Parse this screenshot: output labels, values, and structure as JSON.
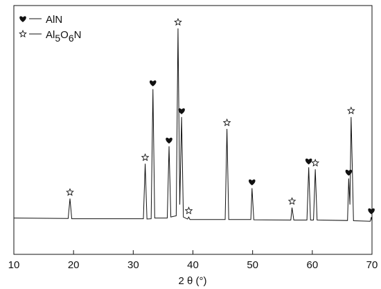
{
  "chart_data": {
    "type": "line",
    "x_label": "2 θ (°)",
    "xlim": [
      10,
      70
    ],
    "xticks": [
      10,
      20,
      30,
      40,
      50,
      60,
      70
    ],
    "ylim": [
      0,
      100
    ],
    "color": "#111111",
    "x": [
      10,
      19.1,
      19.4,
      19.7,
      31.7,
      32.0,
      32.3,
      33.0,
      33.3,
      33.6,
      35.7,
      36.0,
      36.3,
      37.2,
      37.5,
      37.8,
      38.1,
      38.4,
      39.1,
      39.3,
      39.5,
      45.4,
      45.7,
      46.0,
      49.7,
      49.9,
      50.2,
      56.4,
      56.6,
      56.9,
      59.1,
      59.4,
      59.7,
      60.2,
      60.5,
      60.8,
      65.9,
      66.1,
      66.3,
      66.5,
      66.7,
      66.9,
      69.7,
      69.9,
      70
    ],
    "values": [
      14.6,
      14.4,
      22.4,
      14.3,
      14.3,
      36.4,
      14.2,
      14.3,
      66.4,
      14.6,
      14.6,
      43.4,
      15,
      15.5,
      90.8,
      20,
      55.2,
      15,
      14.2,
      15,
      14,
      14,
      50.4,
      14,
      14,
      26.6,
      13.9,
      13.8,
      18.8,
      13.8,
      13.8,
      35,
      13.8,
      13.8,
      34.2,
      13.8,
      13.6,
      30.5,
      20,
      55.2,
      35,
      13.5,
      13.3,
      15,
      13.3
    ],
    "series": [
      {
        "name": "AlN",
        "marker": "heart",
        "color": "#111111",
        "x": [
          33.3,
          36.0,
          38.1,
          49.9,
          59.4,
          66.1,
          69.9
        ],
        "values": [
          66.4,
          43.4,
          55.2,
          26.6,
          35,
          30.5,
          15
        ]
      },
      {
        "name": "Al5O6N",
        "marker": "star",
        "color": "#111111",
        "x": [
          19.4,
          32.0,
          37.5,
          39.3,
          45.7,
          56.6,
          60.5,
          66.5
        ],
        "values": [
          22.4,
          36.4,
          90.8,
          15,
          50.4,
          18.8,
          34.2,
          55.2
        ]
      }
    ]
  }
}
